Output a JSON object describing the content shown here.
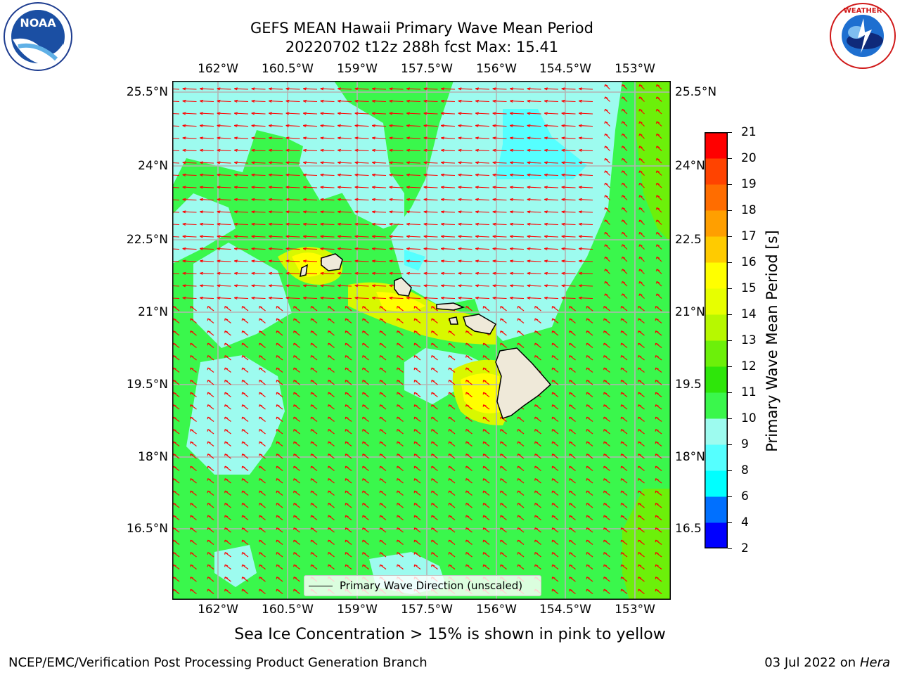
{
  "title": {
    "line1": "GEFS MEAN Hawaii Primary Wave Mean Period",
    "line2": "20220702 t12z 288h fcst   Max: 15.41"
  },
  "logos": {
    "left": "NOAA",
    "right": "NATIONAL WEATHER SERVICE"
  },
  "map": {
    "lon_labels": [
      "162°W",
      "160.5°W",
      "159°W",
      "157.5°W",
      "156°W",
      "154.5°W",
      "153°W"
    ],
    "lat_labels": [
      "25.5°N",
      "24°N",
      "22.5°N",
      "21°N",
      "19.5°N",
      "18°N",
      "16.5°N"
    ],
    "lat_labels_right": [
      "25.5°N",
      "24°N",
      "22.5",
      "21°N",
      "19.5",
      "18°N",
      "16.5"
    ],
    "legend": "Primary Wave Direction (unscaled)",
    "arrow_color": "#ff0000",
    "land_color": "#efe9d9"
  },
  "colorbar": {
    "label": "Primary Wave Mean Period [s]",
    "ticks": [
      "2",
      "4",
      "6",
      "8",
      "9",
      "10",
      "11",
      "12",
      "13",
      "14",
      "15",
      "16",
      "17",
      "18",
      "19",
      "20",
      "21"
    ],
    "colors": [
      "#0000ff",
      "#0070ff",
      "#00ffff",
      "#55ffff",
      "#9dfbef",
      "#3af74c",
      "#2ee60a",
      "#6cf00a",
      "#b7f800",
      "#e7ff00",
      "#ffff00",
      "#ffcb00",
      "#ff9f00",
      "#ff6d00",
      "#ff4300",
      "#ff0000"
    ]
  },
  "caption": "Sea Ice Concentration > 15% is shown in pink to yellow",
  "footer": {
    "left": "NCEP/EMC/Verification Post Processing Product Generation Branch",
    "right_prefix": "03 Jul 2022 on ",
    "right_host": "Hera"
  }
}
